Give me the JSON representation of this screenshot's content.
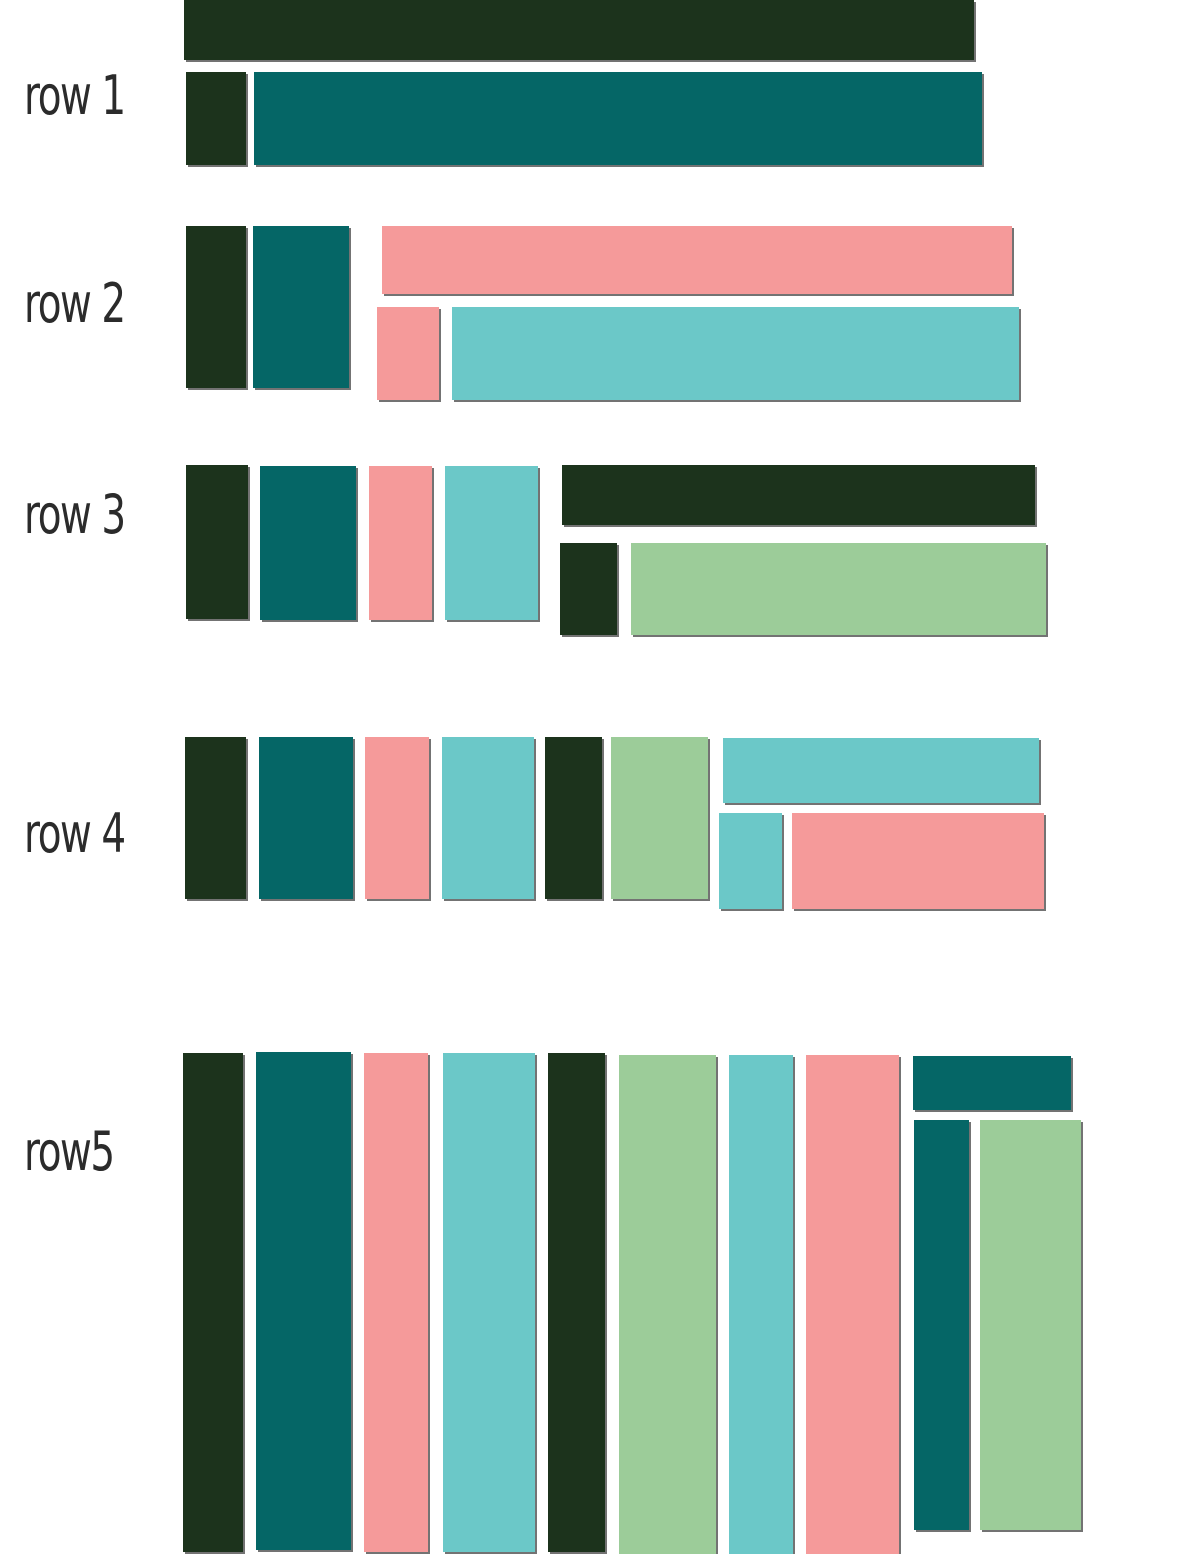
{
  "palette": {
    "dark-green": "#1c331c",
    "teal": "#056666",
    "pink": "#f59a9a",
    "aqua": "#6bc8c8",
    "sage": "#9ccc99"
  },
  "rows": [
    {
      "label": "row 1"
    },
    {
      "label": "row 2"
    },
    {
      "label": "row 3"
    },
    {
      "label": "row 4"
    },
    {
      "label": "row5"
    }
  ]
}
